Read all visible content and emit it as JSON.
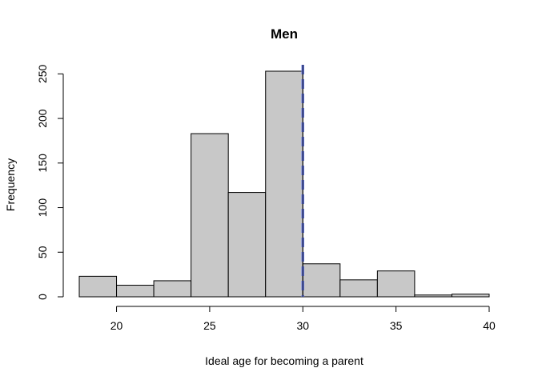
{
  "chart_data": {
    "type": "bar",
    "title": "Men",
    "xlabel": "Ideal age for becoming a parent",
    "ylabel": "Frequency",
    "bins": [
      {
        "x0": 18,
        "x1": 20,
        "count": 23
      },
      {
        "x0": 20,
        "x1": 22,
        "count": 13
      },
      {
        "x0": 22,
        "x1": 24,
        "count": 18
      },
      {
        "x0": 24,
        "x1": 26,
        "count": 183
      },
      {
        "x0": 26,
        "x1": 28,
        "count": 117
      },
      {
        "x0": 28,
        "x1": 30,
        "count": 253
      },
      {
        "x0": 30,
        "x1": 32,
        "count": 37
      },
      {
        "x0": 32,
        "x1": 34,
        "count": 19
      },
      {
        "x0": 34,
        "x1": 36,
        "count": 29
      },
      {
        "x0": 36,
        "x1": 38,
        "count": 2
      },
      {
        "x0": 38,
        "x1": 40,
        "count": 3
      }
    ],
    "xticks": [
      20,
      25,
      30,
      35,
      40
    ],
    "yticks": [
      0,
      50,
      100,
      150,
      200,
      250
    ],
    "xlim": [
      18,
      40
    ],
    "ylim": [
      0,
      253
    ],
    "reference_line": {
      "x": 30,
      "style": "dashed"
    },
    "bar_fill": "#c8c8c8",
    "bar_stroke": "#000000",
    "reference_line_color": "#6b7de8",
    "grid": false
  }
}
